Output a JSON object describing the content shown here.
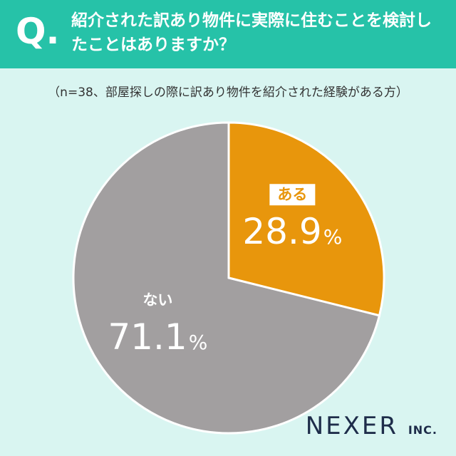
{
  "header": {
    "q_mark": "Q.",
    "question": "紹介された訳あり物件に実際に住むことを検討したことはありますか？"
  },
  "note": "（n=38、部屋探しの際に訳あり物件を紹介された経験がある方）",
  "chart_data": {
    "type": "pie",
    "categories": [
      "ある",
      "ない"
    ],
    "values": [
      28.9,
      71.1
    ],
    "value_labels": [
      "28.9",
      "71.1"
    ],
    "unit": "%",
    "colors": [
      "#e8960c",
      "#a29fa0"
    ],
    "label_bg": [
      "#ffffff",
      ""
    ],
    "label_color": [
      "#e8960c",
      "#ffffff"
    ]
  },
  "logo": {
    "main": "NEXER",
    "suffix": "INC."
  }
}
